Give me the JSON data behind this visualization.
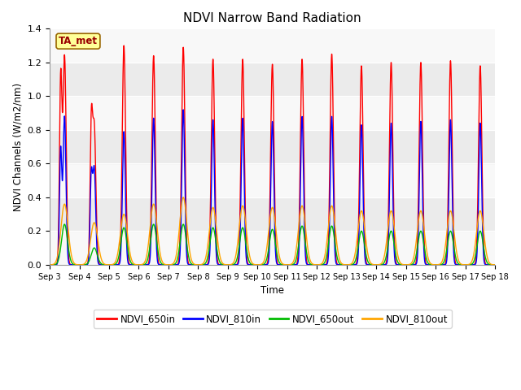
{
  "title": "NDVI Narrow Band Radiation",
  "xlabel": "Time",
  "ylabel": "NDVI Channels (W/m2/nm)",
  "ylim": [
    0.0,
    1.4
  ],
  "yticks": [
    0.0,
    0.2,
    0.4,
    0.6,
    0.8,
    1.0,
    1.2,
    1.4
  ],
  "annotation": "TA_met",
  "legend": [
    "NDVI_650in",
    "NDVI_810in",
    "NDVI_650out",
    "NDVI_810out"
  ],
  "colors": {
    "NDVI_650in": "#FF0000",
    "NDVI_810in": "#0000FF",
    "NDVI_650out": "#00BB00",
    "NDVI_810out": "#FFA500"
  },
  "start_day": 3,
  "end_day": 18,
  "n_days": 15,
  "peaks_650in": [
    1.24,
    0.82,
    1.3,
    1.24,
    1.29,
    1.22,
    1.22,
    1.19,
    1.22,
    1.25,
    1.18,
    1.2,
    1.2,
    1.21,
    1.18
  ],
  "peaks_810in": [
    0.88,
    0.57,
    0.79,
    0.87,
    0.92,
    0.86,
    0.87,
    0.85,
    0.88,
    0.88,
    0.83,
    0.84,
    0.85,
    0.86,
    0.84
  ],
  "peaks_650out": [
    0.24,
    0.1,
    0.22,
    0.24,
    0.24,
    0.22,
    0.22,
    0.21,
    0.23,
    0.23,
    0.2,
    0.2,
    0.2,
    0.2,
    0.2
  ],
  "peaks_810out": [
    0.36,
    0.25,
    0.3,
    0.36,
    0.4,
    0.34,
    0.35,
    0.34,
    0.35,
    0.35,
    0.32,
    0.32,
    0.32,
    0.32,
    0.32
  ],
  "band_color_light": "#EBEBEB",
  "band_color_white": "#F8F8F8",
  "background_color": "#F8F8F8",
  "line_width": 1.0,
  "figwidth": 6.4,
  "figheight": 4.8,
  "dpi": 100
}
